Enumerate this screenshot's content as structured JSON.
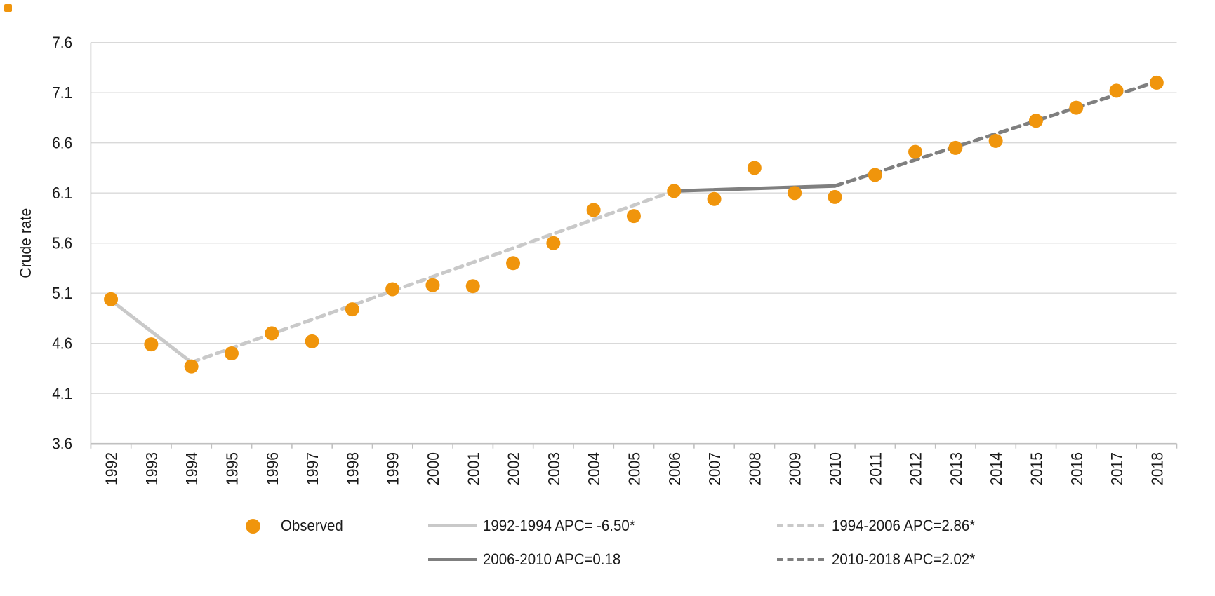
{
  "chart_data": {
    "type": "scatter",
    "title": "",
    "xlabel": "",
    "ylabel": "Crude rate",
    "ylim": [
      3.6,
      7.6
    ],
    "ytick_step": 0.5,
    "yticks": [
      "3.6",
      "4.1",
      "4.6",
      "5.1",
      "5.6",
      "6.1",
      "6.6",
      "7.1",
      "7.6"
    ],
    "grid": true,
    "legend_position": "bottom",
    "categories": [
      "1992",
      "1993",
      "1994",
      "1995",
      "1996",
      "1997",
      "1998",
      "1999",
      "2000",
      "2001",
      "2002",
      "2003",
      "2004",
      "2005",
      "2006",
      "2007",
      "2008",
      "2009",
      "2010",
      "2011",
      "2012",
      "2013",
      "2014",
      "2015",
      "2016",
      "2017",
      "2018"
    ],
    "observed_label": "Observed",
    "point_color": "#F0950C",
    "observed": [
      5.04,
      4.59,
      4.37,
      4.5,
      4.7,
      4.62,
      4.94,
      5.14,
      5.18,
      5.17,
      5.4,
      5.6,
      5.93,
      5.87,
      6.12,
      6.04,
      6.35,
      6.1,
      6.06,
      6.28,
      6.51,
      6.55,
      6.62,
      6.82,
      6.95,
      7.12,
      7.2
    ],
    "trend_segments": [
      {
        "label": "1992-1994 APC= -6.50*",
        "from_year": "1992",
        "to_year": "1994",
        "from_value": 5.03,
        "to_value": 4.41,
        "style": "solid",
        "color": "#C9C9C9"
      },
      {
        "label": "1994-2006 APC=2.86*",
        "from_year": "1994",
        "to_year": "2006",
        "from_value": 4.41,
        "to_value": 6.12,
        "style": "dashed",
        "color": "#C9C9C9"
      },
      {
        "label": "2006-2010 APC=0.18",
        "from_year": "2006",
        "to_year": "2010",
        "from_value": 6.12,
        "to_value": 6.17,
        "style": "solid",
        "color": "#7F7F7F"
      },
      {
        "label": "2010-2018 APC=2.02*",
        "from_year": "2010",
        "to_year": "2018",
        "from_value": 6.17,
        "to_value": 7.21,
        "style": "dashed",
        "color": "#7F7F7F"
      }
    ],
    "colors": {
      "gridline": "#D9D9D9",
      "axis_line": "#C0C0C0",
      "text": "#1A1A1A"
    }
  }
}
